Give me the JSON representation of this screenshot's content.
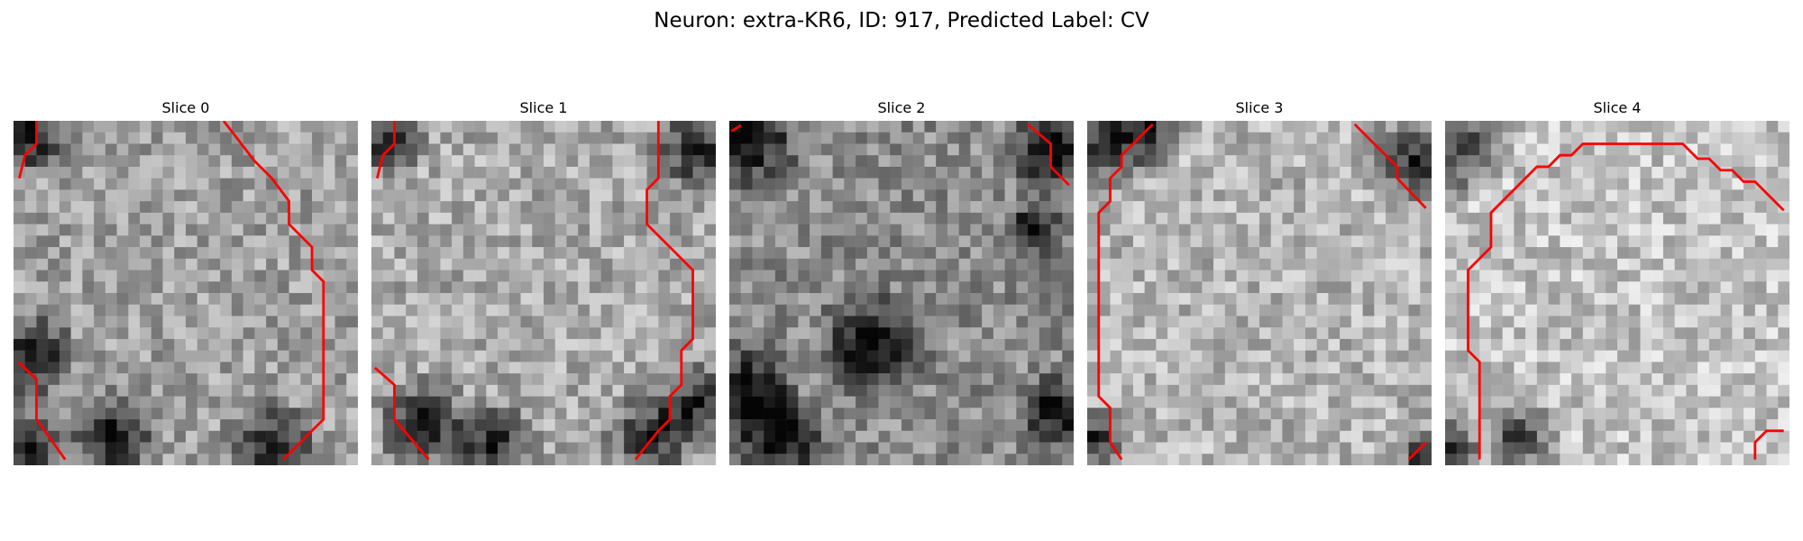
{
  "figure": {
    "title": "Neuron: extra-KR6, ID: 917, Predicted Label: CV"
  },
  "slices": [
    {
      "title": "Slice 0"
    },
    {
      "title": "Slice 1"
    },
    {
      "title": "Slice 2"
    },
    {
      "title": "Slice 3"
    },
    {
      "title": "Slice 4"
    }
  ],
  "colors": {
    "contour": "#ff0000",
    "background": "#ffffff",
    "colormap": "grayscale"
  }
}
